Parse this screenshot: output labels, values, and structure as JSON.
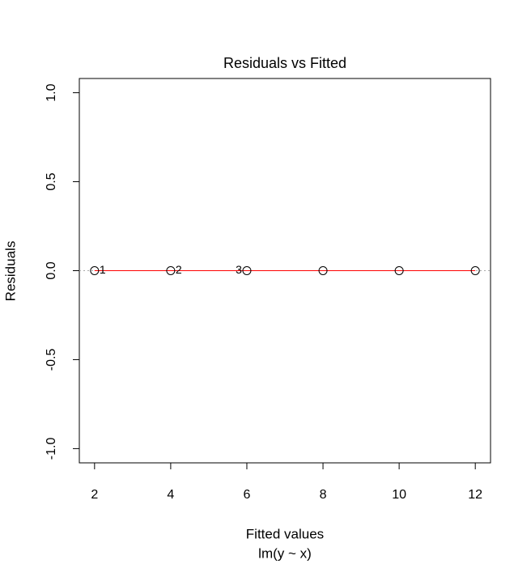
{
  "chart_data": {
    "type": "scatter",
    "title": "Residuals vs Fitted",
    "xlabel": "Fitted values",
    "subtitle": "lm(y ~ x)",
    "ylabel": "Residuals",
    "x": [
      2,
      4,
      6,
      8,
      10,
      12
    ],
    "values": [
      0,
      0,
      0,
      0,
      0,
      0
    ],
    "point_labels": [
      "1",
      "2",
      "3",
      null,
      null,
      null
    ],
    "smooth": {
      "color": "#ff0000",
      "values": [
        0,
        0,
        0,
        0,
        0,
        0
      ]
    },
    "hline": 0,
    "xlim": [
      1.6,
      12.4
    ],
    "ylim": [
      -1.08,
      1.08
    ],
    "xticks": [
      2,
      4,
      6,
      8,
      10,
      12
    ],
    "yticks": [
      {
        "value": -1,
        "label": "-1.0"
      },
      {
        "value": -0.5,
        "label": "-0.5"
      },
      {
        "value": 0,
        "label": "0.0"
      },
      {
        "value": 0.5,
        "label": "0.5"
      },
      {
        "value": 1,
        "label": "1.0"
      }
    ]
  }
}
